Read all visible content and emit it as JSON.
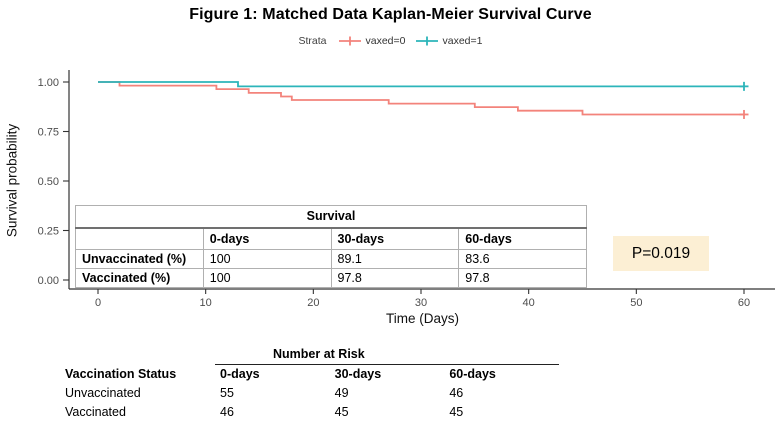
{
  "figure": {
    "title": "Figure 1: Matched Data Kaplan-Meier Survival Curve"
  },
  "legend": {
    "title": "Strata",
    "items": [
      {
        "label": "vaxed=0",
        "color": "#F3837B"
      },
      {
        "label": "vaxed=1",
        "color": "#2CB5BA"
      }
    ]
  },
  "chart_data": {
    "type": "line",
    "subtype": "kaplan-meier-step-curve",
    "title": "Figure 1: Matched Data Kaplan-Meier Survival Curve",
    "xlabel": "Time (Days)",
    "ylabel": "Survival probability",
    "xlim": [
      0,
      60
    ],
    "ylim": [
      0,
      1
    ],
    "xticks": [
      0,
      10,
      20,
      30,
      40,
      50,
      60
    ],
    "yticks": [
      {
        "value": 0.0,
        "label": "0.00"
      },
      {
        "value": 0.25,
        "label": "0.25"
      },
      {
        "value": 0.5,
        "label": "0.50"
      },
      {
        "value": 0.75,
        "label": "0.75"
      },
      {
        "value": 1.0,
        "label": "1.00"
      }
    ],
    "grid": false,
    "legend_position": "top",
    "series": [
      {
        "name": "vaxed=0",
        "group": "Unvaccinated",
        "color": "#F3837B",
        "steps": [
          [
            0,
            1.0
          ],
          [
            2,
            0.982
          ],
          [
            11,
            0.964
          ],
          [
            14,
            0.945
          ],
          [
            17,
            0.927
          ],
          [
            18,
            0.909
          ],
          [
            27,
            0.891
          ],
          [
            35,
            0.873
          ],
          [
            39,
            0.855
          ],
          [
            45,
            0.836
          ],
          [
            60,
            0.836
          ]
        ],
        "censor_marks": [
          [
            60,
            0.836
          ]
        ]
      },
      {
        "name": "vaxed=1",
        "group": "Vaccinated",
        "color": "#2CB5BA",
        "steps": [
          [
            0,
            1.0
          ],
          [
            13,
            0.978
          ],
          [
            60,
            0.978
          ]
        ],
        "censor_marks": [
          [
            60,
            0.978
          ]
        ]
      }
    ]
  },
  "survival_table": {
    "title": "Survival",
    "columns": [
      "",
      "0-days",
      "30-days",
      "60-days"
    ],
    "rows": [
      {
        "label": "Unvaccinated (%)",
        "values": [
          "100",
          "89.1",
          "83.6"
        ]
      },
      {
        "label": "Vaccinated (%)",
        "values": [
          "100",
          "97.8",
          "97.8"
        ]
      }
    ]
  },
  "annotations": {
    "p_value": "P=0.019",
    "p_box_color": "#FCEFD4"
  },
  "risk_table": {
    "title": "Number at Risk",
    "columns": [
      "Vaccination Status",
      "0-days",
      "30-days",
      "60-days"
    ],
    "rows": [
      {
        "label": "Unvaccinated",
        "values": [
          "55",
          "49",
          "46"
        ]
      },
      {
        "label": "Vaccinated",
        "values": [
          "46",
          "45",
          "45"
        ]
      }
    ]
  }
}
